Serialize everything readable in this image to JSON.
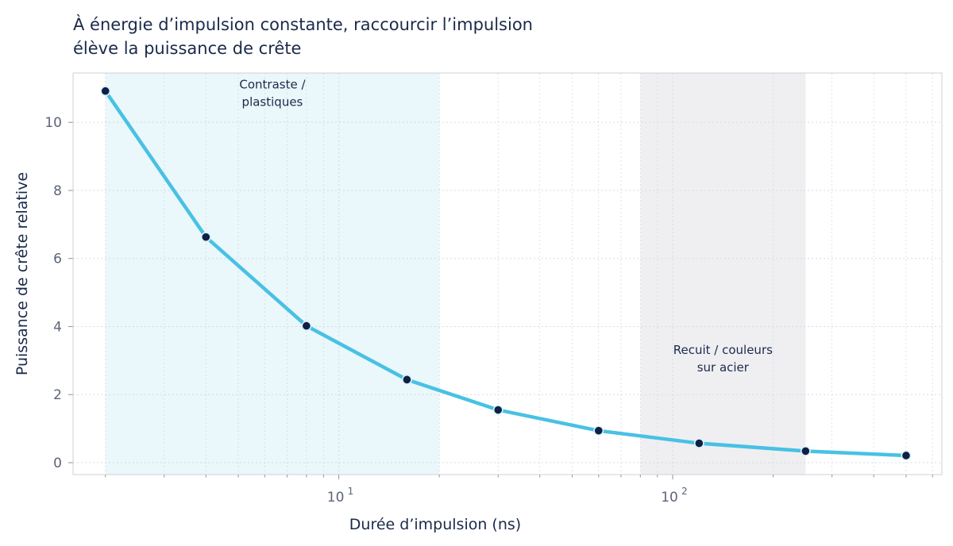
{
  "chart_data": {
    "type": "line",
    "title_lines": [
      "À énergie d’impulsion constante, raccourcir l’impulsion",
      "élève la puissance de crête"
    ],
    "xlabel": "Durée d’impulsion (ns)",
    "ylabel": "Puissance de crête relative",
    "x_scale": "log",
    "xlim": [
      1.6,
      640
    ],
    "ylim": [
      -0.35,
      11.45
    ],
    "x_major_ticks": [
      {
        "value": 10,
        "base": "10",
        "exp": "1"
      },
      {
        "value": 100,
        "base": "10",
        "exp": "2"
      }
    ],
    "y_ticks": [
      0,
      2,
      4,
      6,
      8,
      10
    ],
    "grid": true,
    "series": [
      {
        "color": "#48c1e3",
        "x": [
          2,
          4,
          8,
          16,
          30,
          60,
          120,
          250,
          500
        ],
        "y": [
          10.92,
          6.63,
          4.02,
          2.44,
          1.55,
          0.94,
          0.57,
          0.34,
          0.21
        ]
      }
    ],
    "regions": [
      {
        "label_lines": [
          "Contraste /",
          "plastiques"
        ],
        "x_from": 2,
        "x_to": 20,
        "color": "#eaf7fb",
        "label_y": 11.0
      },
      {
        "label_lines": [
          "Recuit / couleurs",
          "sur acier"
        ],
        "x_from": 80,
        "x_to": 250,
        "color": "#efeff2",
        "label_y": 3.2
      }
    ],
    "colors": {
      "line": "#48c1e3",
      "marker_fill": "#0f1f45",
      "marker_edge": "#d9f3fb",
      "text": "#1b2a4a",
      "tick_text": "#5c6478",
      "grid": "#d6dbe1",
      "frame": "#cdd2d8"
    }
  }
}
